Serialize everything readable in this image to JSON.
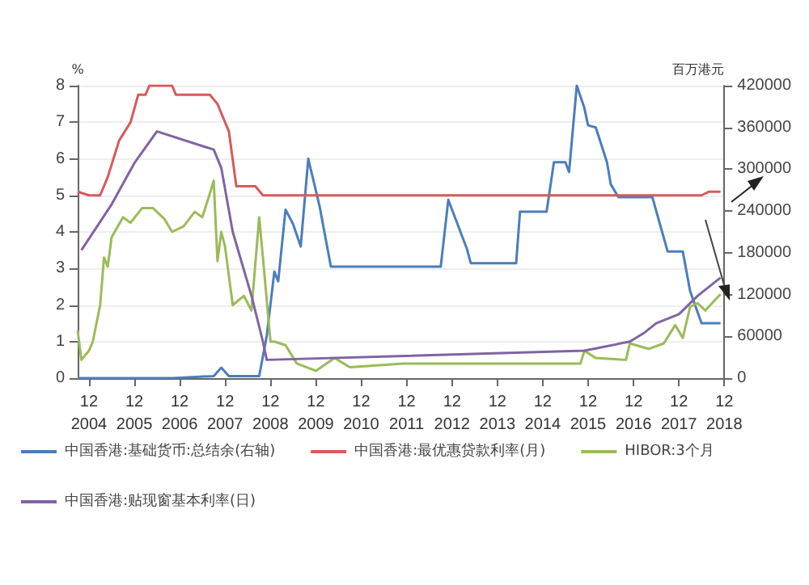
{
  "chart_data": {
    "type": "line",
    "ylabel": "%",
    "y2label": "百万港元",
    "xlim": [
      "2004-09",
      "2018-12"
    ],
    "xticks": [
      {
        "value": "2004-12",
        "label": "12\n2004"
      },
      {
        "value": "2005-12",
        "label": "12\n2005"
      },
      {
        "value": "2006-12",
        "label": "12\n2006"
      },
      {
        "value": "2007-12",
        "label": "12\n2007"
      },
      {
        "value": "2008-12",
        "label": "12\n2008"
      },
      {
        "value": "2009-12",
        "label": "12\n2009"
      },
      {
        "value": "2010-12",
        "label": "12\n2010"
      },
      {
        "value": "2011-12",
        "label": "12\n2011"
      },
      {
        "value": "2012-12",
        "label": "12\n2012"
      },
      {
        "value": "2013-12",
        "label": "12\n2013"
      },
      {
        "value": "2014-12",
        "label": "12\n2014"
      },
      {
        "value": "2015-12",
        "label": "12\n2015"
      },
      {
        "value": "2016-12",
        "label": "12\n2016"
      },
      {
        "value": "2017-12",
        "label": "12\n2017"
      },
      {
        "value": "2018-12",
        "label": "12\n2018"
      }
    ],
    "ylim": [
      0,
      8
    ],
    "yticks": [
      0,
      1,
      2,
      3,
      4,
      5,
      6,
      7,
      8
    ],
    "y2lim": [
      0,
      420000
    ],
    "y2ticks": [
      0,
      60000,
      120000,
      180000,
      240000,
      300000,
      360000,
      420000
    ],
    "grid": "y",
    "legend": "bottom",
    "marker": "none",
    "line_style": "solid",
    "series": [
      {
        "name": "中国香港:基础货币:总结余(右轴)",
        "color": "#4a7ebb",
        "axis": "y2",
        "x": [
          "2004-09",
          "2006-10",
          "2007-09",
          "2007-11",
          "2008-01",
          "2008-09",
          "2008-11",
          "2009-01",
          "2009-02",
          "2009-04",
          "2009-06",
          "2009-08",
          "2009-10",
          "2010-01",
          "2010-04",
          "2012-09",
          "2012-11",
          "2013-04",
          "2013-05",
          "2014-05",
          "2014-06",
          "2015-01",
          "2015-03",
          "2015-06",
          "2015-07",
          "2015-09",
          "2015-11",
          "2015-12",
          "2016-02",
          "2016-05",
          "2016-06",
          "2016-08",
          "2017-05",
          "2017-09",
          "2018-01",
          "2018-03",
          "2018-06",
          "2018-11"
        ],
        "values": [
          0,
          0,
          3000,
          15000,
          3000,
          3000,
          61000,
          153000,
          139000,
          242000,
          221000,
          189000,
          315000,
          246000,
          160000,
          160000,
          256000,
          185000,
          165000,
          165000,
          239000,
          239000,
          310000,
          310000,
          296000,
          420000,
          388000,
          363000,
          360000,
          310000,
          278000,
          260000,
          260000,
          182000,
          182000,
          125000,
          79000,
          79000
        ]
      },
      {
        "name": "中国香港:最优惠贷款利率(月)",
        "color": "#d9595b",
        "x": [
          "2004-09",
          "2004-12",
          "2005-03",
          "2005-05",
          "2005-08",
          "2005-11",
          "2006-01",
          "2006-03",
          "2006-04",
          "2006-10",
          "2006-11",
          "2007-08",
          "2007-10",
          "2008-01",
          "2008-03",
          "2008-08",
          "2008-10",
          "2018-06",
          "2018-08",
          "2018-11"
        ],
        "values": [
          5.1,
          5.0,
          5.0,
          5.5,
          6.5,
          7.0,
          7.75,
          7.75,
          8.0,
          8.0,
          7.75,
          7.75,
          7.5,
          6.75,
          5.25,
          5.25,
          5.0,
          5.0,
          5.1,
          5.1
        ]
      },
      {
        "name": "HIBOR:3个月",
        "color": "#9bbb59",
        "x": [
          "2004-09",
          "2004-10",
          "2004-12",
          "2005-01",
          "2005-03",
          "2005-04",
          "2005-05",
          "2005-06",
          "2005-09",
          "2005-11",
          "2006-02",
          "2006-05",
          "2006-08",
          "2006-10",
          "2007-01",
          "2007-04",
          "2007-06",
          "2007-08",
          "2007-09",
          "2007-10",
          "2007-11",
          "2007-12",
          "2008-02",
          "2008-05",
          "2008-07",
          "2008-09",
          "2008-10",
          "2008-12",
          "2009-01",
          "2009-04",
          "2009-07",
          "2009-12",
          "2010-05",
          "2010-09",
          "2011-04",
          "2011-11",
          "2012-06",
          "2013-07",
          "2014-09",
          "2015-10",
          "2015-11",
          "2016-02",
          "2016-10",
          "2016-11",
          "2017-04",
          "2017-08",
          "2017-11",
          "2018-01",
          "2018-03",
          "2018-05",
          "2018-07",
          "2018-11"
        ],
        "values": [
          1.3,
          0.5,
          0.75,
          1.0,
          2.0,
          3.3,
          3.05,
          3.85,
          4.4,
          4.25,
          4.65,
          4.65,
          4.35,
          4.0,
          4.15,
          4.55,
          4.4,
          5.05,
          5.4,
          3.2,
          4.0,
          3.6,
          2.0,
          2.25,
          1.85,
          4.4,
          3.3,
          1.0,
          1.0,
          0.9,
          0.4,
          0.2,
          0.55,
          0.3,
          0.35,
          0.4,
          0.4,
          0.4,
          0.4,
          0.4,
          0.75,
          0.55,
          0.5,
          0.95,
          0.8,
          0.95,
          1.45,
          1.1,
          1.95,
          2.05,
          1.85,
          2.3
        ]
      },
      {
        "name": "中国香港:贴现窗基本利率(日)",
        "color": "#8064a2",
        "x": [
          "2004-10",
          "2005-06",
          "2005-12",
          "2006-06",
          "2007-09",
          "2007-11",
          "2008-02",
          "2008-07",
          "2008-10",
          "2008-11",
          "2015-11",
          "2016-11",
          "2017-03",
          "2017-06",
          "2017-12",
          "2018-05",
          "2018-11"
        ],
        "values": [
          3.5,
          4.75,
          5.88,
          6.75,
          6.25,
          5.75,
          4.0,
          2.25,
          1.0,
          0.5,
          0.75,
          1.0,
          1.25,
          1.5,
          1.75,
          2.25,
          2.75
        ]
      }
    ]
  }
}
